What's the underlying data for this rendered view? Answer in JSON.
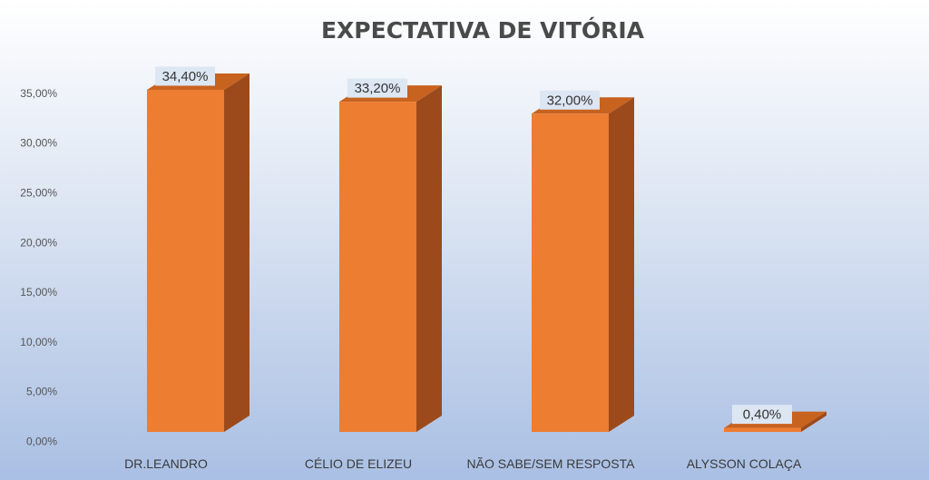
{
  "chart_data": {
    "type": "bar",
    "title": "EXPECTATIVA DE VITÓRIA",
    "categories": [
      "DR.LEANDRO",
      "CÉLIO DE ELIZEU",
      "NÃO SABE/SEM RESPOSTA",
      "ALYSSON COLAÇA"
    ],
    "values": [
      34.4,
      33.2,
      32.0,
      0.4
    ],
    "data_labels": [
      "34,40%",
      "33,20%",
      "32,00%",
      "0,40%"
    ],
    "y_ticks": [
      "0,00%",
      "5,00%",
      "10,00%",
      "15,00%",
      "20,00%",
      "25,00%",
      "30,00%",
      "35,00%"
    ],
    "ylim": [
      0,
      35
    ],
    "grid": false,
    "legend": "none",
    "style": "3d-column",
    "colors": {
      "front": "#ed7d31",
      "side": "#9c4a1b",
      "top": "#c8621f",
      "label_bg": "#dde6f3"
    }
  }
}
